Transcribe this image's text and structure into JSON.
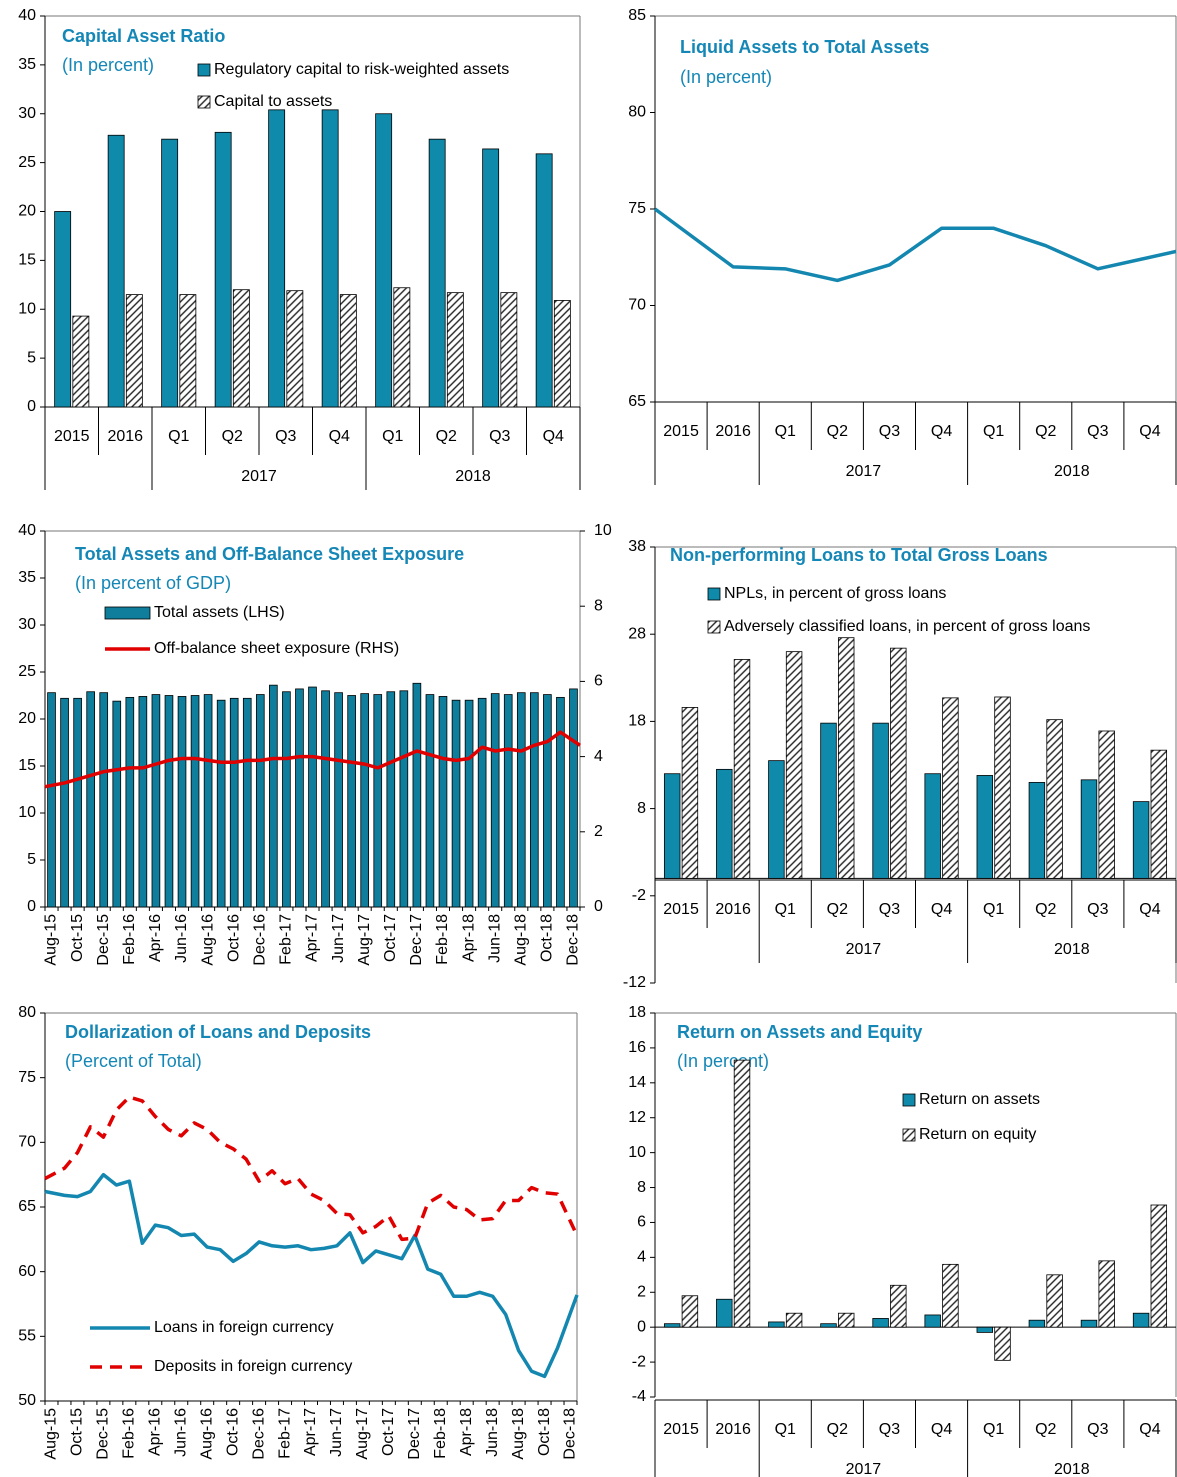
{
  "chart_data": [
    {
      "type": "bar",
      "title": "Capital Asset Ratio",
      "subtitle": "(In percent)",
      "categories": [
        "2015",
        "2016",
        "Q1",
        "Q2",
        "Q3",
        "Q4",
        "Q1",
        "Q2",
        "Q3",
        "Q4"
      ],
      "category_groups": [
        null,
        null,
        "2017",
        "2017",
        "2017",
        "2017",
        "2018",
        "2018",
        "2018",
        "2018"
      ],
      "series": [
        {
          "name": "Regulatory capital to risk-weighted assets",
          "color": "#108aab",
          "values": [
            20.0,
            27.8,
            27.4,
            28.1,
            30.4,
            30.4,
            30.0,
            27.4,
            26.4,
            25.9
          ]
        },
        {
          "name": "Capital to assets",
          "color": "#ffffff",
          "pattern": "hatch",
          "values": [
            9.3,
            11.5,
            11.5,
            12.0,
            11.9,
            11.5,
            12.2,
            11.7,
            11.7,
            10.9
          ]
        }
      ],
      "ylim": [
        0,
        40
      ],
      "yticks": [
        0,
        5,
        10,
        15,
        20,
        25,
        30,
        35,
        40
      ]
    },
    {
      "type": "line",
      "title": "Liquid Assets to Total Assets",
      "subtitle": "(In percent)",
      "categories": [
        "2015",
        "2016",
        "Q1",
        "Q2",
        "Q3",
        "Q4",
        "Q1",
        "Q2",
        "Q3",
        "Q4"
      ],
      "category_groups": [
        null,
        null,
        "2017",
        "2017",
        "2017",
        "2017",
        "2018",
        "2018",
        "2018",
        "2018"
      ],
      "values": [
        75.0,
        72.0,
        71.9,
        71.3,
        72.1,
        74.0,
        74.0,
        73.1,
        71.9,
        72.8
      ],
      "color": "#1487b0",
      "ylim": [
        65,
        85
      ],
      "yticks": [
        65,
        70,
        75,
        80,
        85
      ]
    },
    {
      "type": "bar",
      "title": "Total Assets and Off-Balance Sheet Exposure",
      "subtitle": "(In percent of GDP)",
      "categories": [
        "Aug-15",
        null,
        "Oct-15",
        null,
        "Dec-15",
        null,
        "Feb-16",
        null,
        "Apr-16",
        null,
        "Jun-16",
        null,
        "Aug-16",
        null,
        "Oct-16",
        null,
        "Dec-16",
        null,
        "Feb-17",
        null,
        "Apr-17",
        null,
        "Jun-17",
        null,
        "Aug-17",
        null,
        "Oct-17",
        null,
        "Dec-17",
        null,
        "Feb-18",
        null,
        "Apr-18",
        null,
        "Jun-18",
        null,
        "Aug-18",
        null,
        "Oct-18",
        null,
        "Dec-18"
      ],
      "series": [
        {
          "name": "Total assets (LHS)",
          "type": "bar",
          "color": "#0e7e9c",
          "values": [
            22.8,
            22.2,
            22.2,
            22.9,
            22.8,
            21.9,
            22.3,
            22.4,
            22.6,
            22.5,
            22.4,
            22.5,
            22.6,
            22.0,
            22.2,
            22.2,
            22.6,
            23.6,
            22.9,
            23.2,
            23.4,
            23.0,
            22.8,
            22.5,
            22.7,
            22.6,
            22.9,
            23.0,
            23.8,
            22.6,
            22.4,
            22.0,
            22.0,
            22.2,
            22.7,
            22.6,
            22.8,
            22.8,
            22.6,
            22.3,
            23.2
          ]
        },
        {
          "name": "Off-balance sheet exposure (RHS)",
          "type": "line",
          "axis": "y2",
          "color": "#e00000",
          "values": [
            3.2,
            3.3,
            3.4,
            3.5,
            3.6,
            3.65,
            3.7,
            3.7,
            3.8,
            3.9,
            3.95,
            3.95,
            3.9,
            3.85,
            3.85,
            3.9,
            3.9,
            3.95,
            3.95,
            4.0,
            4.0,
            3.95,
            3.9,
            3.85,
            3.8,
            3.7,
            3.85,
            4.0,
            4.15,
            4.05,
            3.95,
            3.9,
            3.95,
            4.25,
            4.15,
            4.2,
            4.15,
            4.3,
            4.4,
            4.65,
            4.3
          ]
        }
      ],
      "ylim": [
        0,
        40
      ],
      "yticks": [
        0,
        5,
        10,
        15,
        20,
        25,
        30,
        35,
        40
      ],
      "y2lim": [
        0,
        10
      ],
      "y2ticks": [
        0,
        2,
        4,
        6,
        8,
        10
      ]
    },
    {
      "type": "bar",
      "title": "Non-performing Loans to Total Gross Loans",
      "categories": [
        "2015",
        "2016",
        "Q1",
        "Q2",
        "Q3",
        "Q4",
        "Q1",
        "Q2",
        "Q3",
        "Q4"
      ],
      "category_groups": [
        null,
        null,
        "2017",
        "2017",
        "2017",
        "2017",
        "2018",
        "2018",
        "2018",
        "2018"
      ],
      "series": [
        {
          "name": "NPLs, in percent of gross loans",
          "color": "#108aab",
          "values": [
            12.0,
            12.5,
            13.5,
            17.8,
            17.8,
            12.0,
            11.8,
            11.0,
            11.3,
            8.8
          ]
        },
        {
          "name": "Adversely classified loans, in percent of gross loans",
          "color": "#ffffff",
          "pattern": "hatch",
          "values": [
            19.6,
            25.1,
            26.0,
            27.6,
            26.4,
            20.7,
            20.8,
            18.2,
            16.9,
            14.7
          ]
        }
      ],
      "ylim": [
        -12,
        38
      ],
      "yticks": [
        -12,
        -2,
        8,
        18,
        28,
        38
      ]
    },
    {
      "type": "line",
      "title": "Dollarization of Loans and Deposits",
      "subtitle": "(Percent of Total)",
      "categories": [
        "Aug-15",
        null,
        "Oct-15",
        null,
        "Dec-15",
        null,
        "Feb-16",
        null,
        "Apr-16",
        null,
        "Jun-16",
        null,
        "Aug-16",
        null,
        "Oct-16",
        null,
        "Dec-16",
        null,
        "Feb-17",
        null,
        "Apr-17",
        null,
        "Jun-17",
        null,
        "Aug-17",
        null,
        "Oct-17",
        null,
        "Dec-17",
        null,
        "Feb-18",
        null,
        "Apr-18",
        null,
        "Jun-18",
        null,
        "Aug-18",
        null,
        "Oct-18",
        null,
        "Dec-18"
      ],
      "series": [
        {
          "name": "Loans in foreign currency",
          "color": "#1487b0",
          "values": [
            66.2,
            65.9,
            65.8,
            66.2,
            67.5,
            66.7,
            67.0,
            62.2,
            63.6,
            63.4,
            62.8,
            62.9,
            61.9,
            61.7,
            60.8,
            61.4,
            62.3,
            62.0,
            61.9,
            62.0,
            61.7,
            61.8,
            62.0,
            63.0,
            60.7,
            61.6,
            61.3,
            61.0,
            62.8,
            60.2,
            59.8,
            58.1,
            58.1,
            58.4,
            58.1,
            56.7,
            53.9,
            52.3,
            51.9,
            54.1,
            58.2
          ]
        },
        {
          "name": "Deposits in foreign currency",
          "color": "#e00000",
          "dashed": true,
          "values": [
            67.2,
            68.0,
            69.2,
            71.2,
            70.4,
            72.5,
            73.5,
            73.2,
            72.0,
            71.0,
            70.5,
            71.5,
            71.0,
            70.0,
            69.5,
            68.7,
            67.0,
            67.8,
            66.8,
            67.2,
            66.0,
            65.5,
            64.5,
            64.4,
            63.0,
            63.5,
            64.3,
            62.5,
            62.6,
            65.3,
            65.9,
            65.0,
            64.8,
            64.0,
            64.1,
            65.5,
            65.5,
            66.5,
            66.1,
            66.0,
            62.8
          ]
        }
      ],
      "ylim": [
        50,
        80
      ],
      "yticks": [
        50,
        55,
        60,
        65,
        70,
        75,
        80
      ]
    },
    {
      "type": "bar",
      "title": "Return on Assets and Equity",
      "subtitle": "(In percent)",
      "categories": [
        "2015",
        "2016",
        "Q1",
        "Q2",
        "Q3",
        "Q4",
        "Q1",
        "Q2",
        "Q3",
        "Q4"
      ],
      "category_groups": [
        null,
        null,
        "2017",
        "2017",
        "2017",
        "2017",
        "2018",
        "2018",
        "2018",
        "2018"
      ],
      "series": [
        {
          "name": "Return on assets",
          "color": "#108aab",
          "values": [
            0.2,
            1.6,
            0.3,
            0.2,
            0.5,
            0.7,
            -0.3,
            0.4,
            0.4,
            0.8
          ]
        },
        {
          "name": "Return on equity",
          "color": "#ffffff",
          "pattern": "hatch",
          "values": [
            1.8,
            15.3,
            0.8,
            0.8,
            2.4,
            3.6,
            -1.9,
            3.0,
            3.8,
            7.0
          ]
        }
      ],
      "ylim": [
        -4,
        18
      ],
      "yticks": [
        -4,
        -2,
        0,
        2,
        4,
        6,
        8,
        10,
        12,
        14,
        16,
        18
      ]
    }
  ]
}
